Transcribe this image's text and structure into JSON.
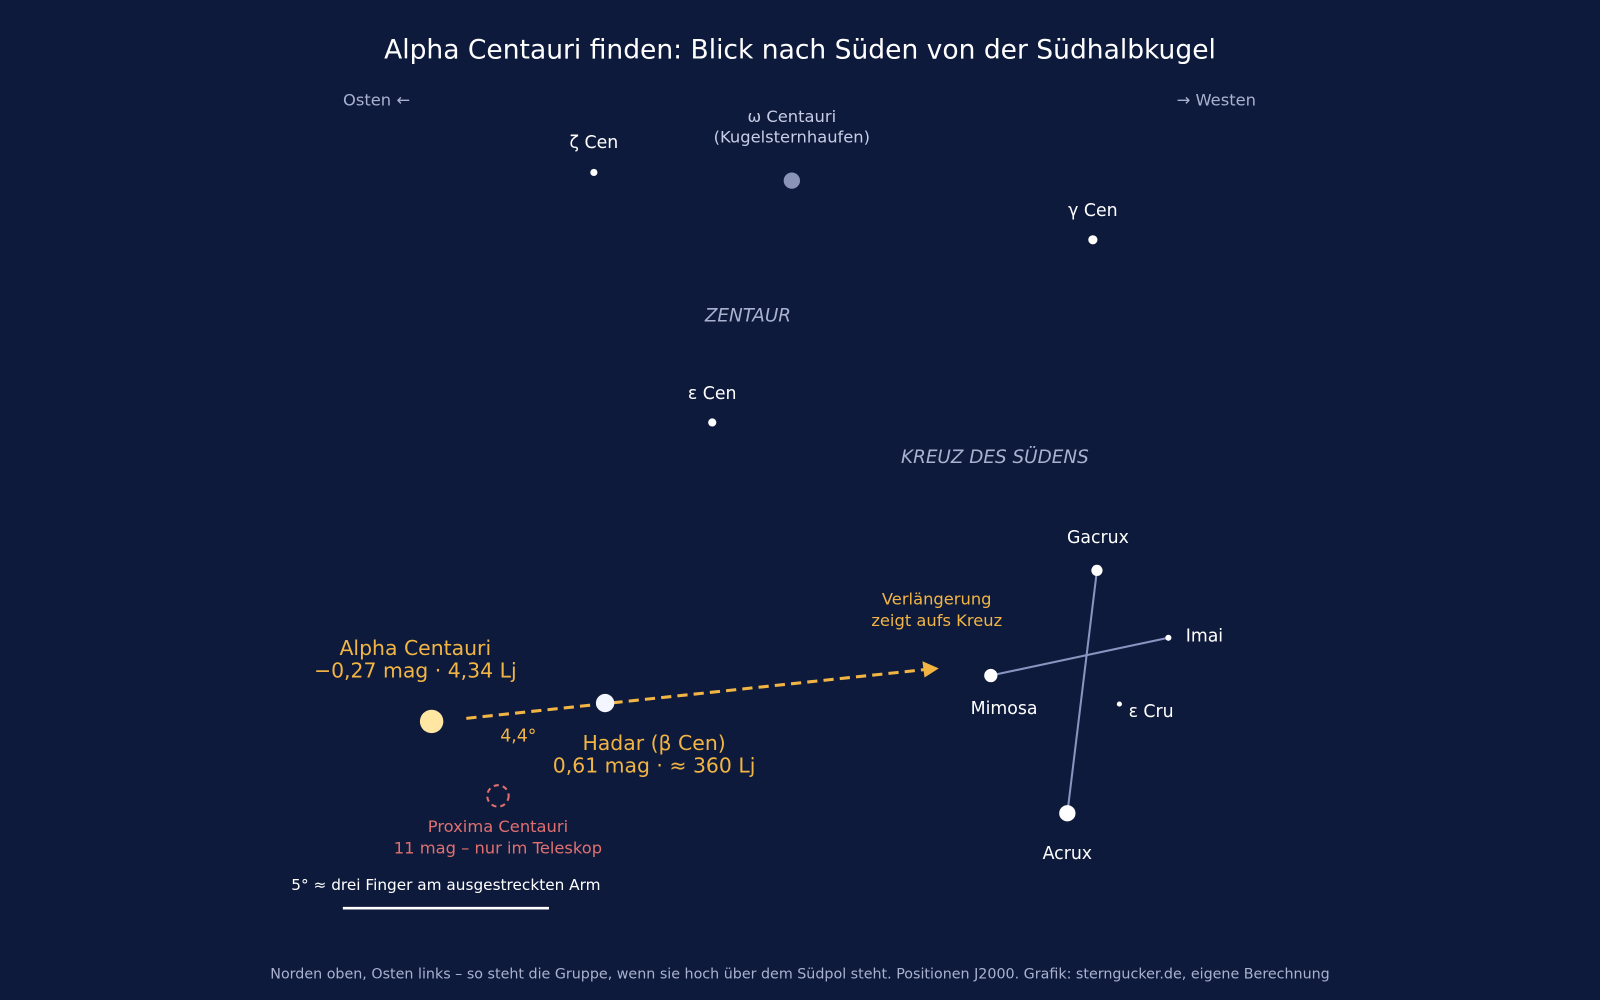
{
  "title": "Alpha Centauri finden: Blick nach Süden von der Südhalbkugel",
  "directions": {
    "east": "Osten ←",
    "west": "→ Westen"
  },
  "constellations": [
    "ZENTAUR",
    "KREUZ DES SÜDENS"
  ],
  "stars": [
    {
      "name": "ζ Cen"
    },
    {
      "name": "ω Centauri",
      "note": "(Kugelsternhaufen)"
    },
    {
      "name": "γ Cen"
    },
    {
      "name": "ε Cen"
    },
    {
      "name": "Alpha Centauri",
      "note": "−0,27 mag · 4,34 Lj"
    },
    {
      "name": "Hadar (β Cen)",
      "note": "0,61 mag · ≈ 360 Lj"
    },
    {
      "name": "Proxima Centauri",
      "note": "11 mag – nur im Teleskop"
    },
    {
      "name": "Gacrux"
    },
    {
      "name": "Imai"
    },
    {
      "name": "Mimosa"
    },
    {
      "name": "ε Cru"
    },
    {
      "name": "Acrux"
    }
  ],
  "annotations": {
    "separation": "4,4°",
    "arrow_note": [
      "Verlängerung",
      "zeigt aufs Kreuz"
    ],
    "scale": "5° ≈ drei Finger am ausgestreckten Arm"
  },
  "footer": "Norden oben, Osten links – so steht die Gruppe, wenn sie hoch über dem Südpol steht. Positionen J2000.  Grafik: sterngucker.de, eigene Berechnung"
}
